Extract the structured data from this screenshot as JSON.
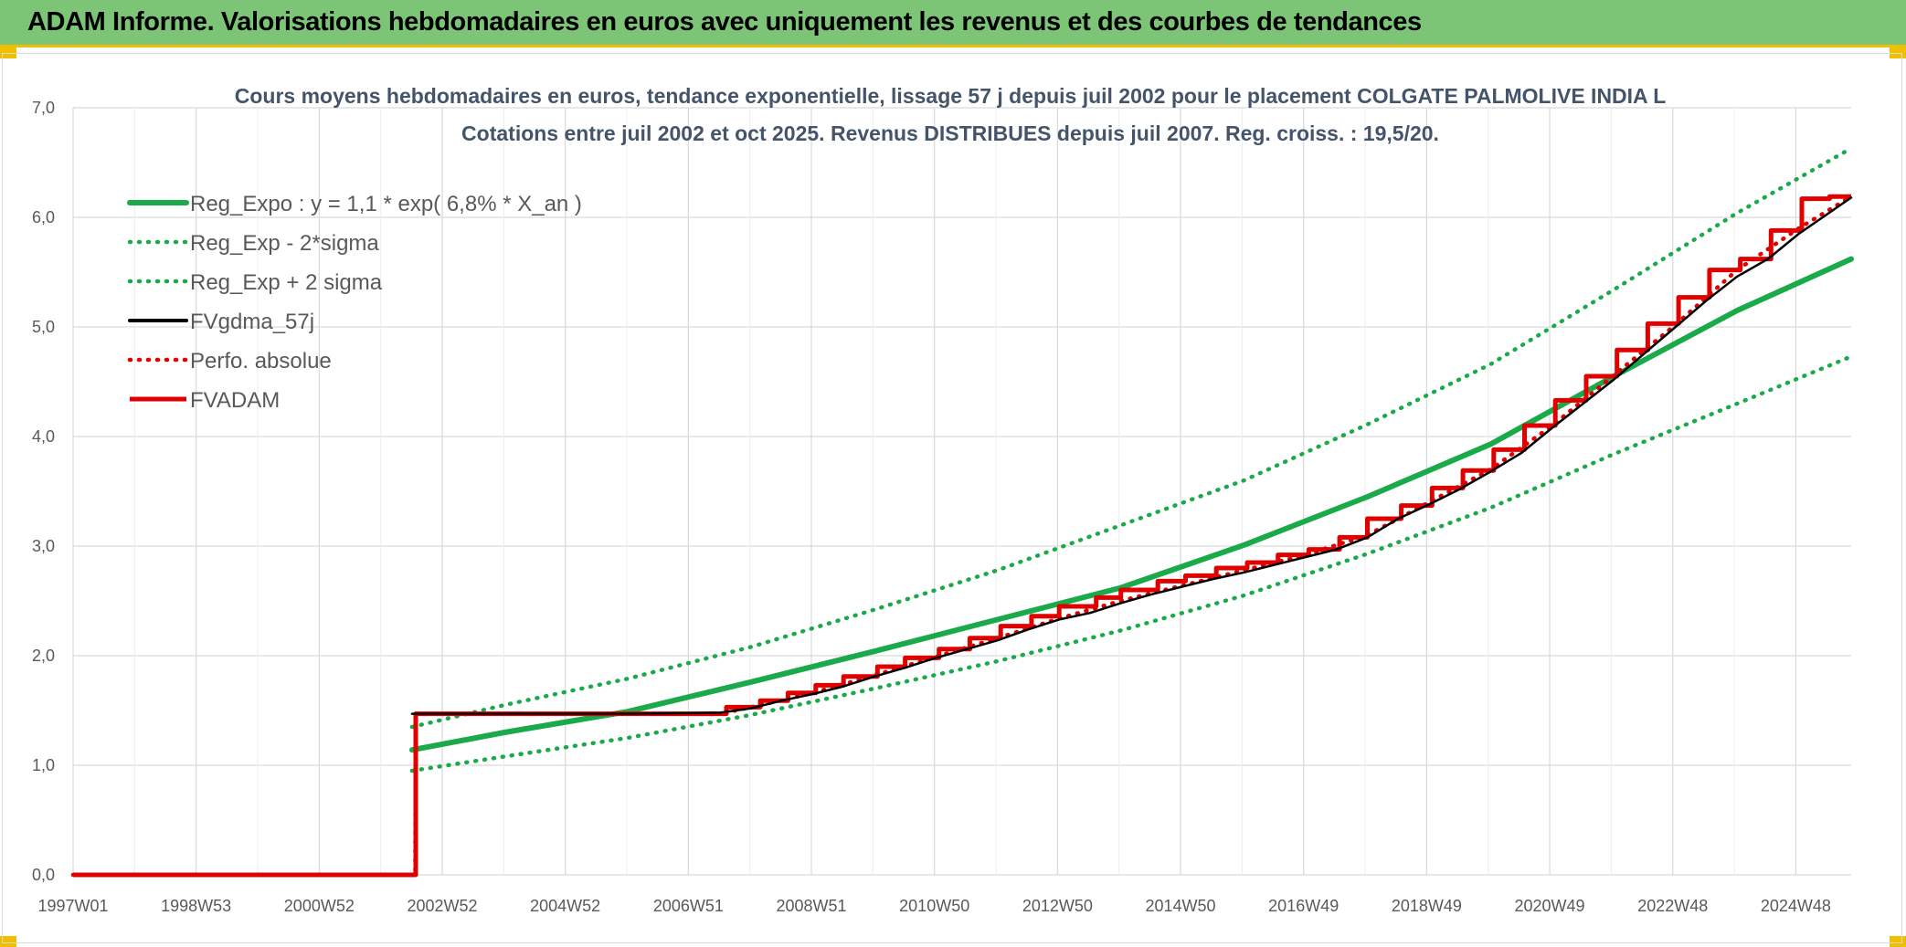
{
  "header": {
    "title": "ADAM Informe. Valorisations hebdomadaires en euros avec uniquement les revenus et des courbes de tendances"
  },
  "colors": {
    "header_bg": "#7cc576",
    "accent_yellow": "#f0c000",
    "trend_green": "#1aaa4a",
    "fvadam_red": "#e00000",
    "fvgdma_black": "#000000",
    "perfo_red": "#e00000"
  },
  "chart_data": {
    "type": "line",
    "title": "Cours moyens hebdomadaires en euros, tendance exponentielle, lissage 57 j depuis juil 2002 pour le placement COLGATE PALMOLIVE INDIA L",
    "subtitle": "Cotations entre juil 2002 et oct 2025. Revenus DISTRIBUES depuis juil 2007. Reg. croiss. : 19,5/20.",
    "xlabel": "",
    "ylabel": "",
    "x_unit": "years (1997W01 = 1997.0)",
    "xlim": [
      1997.0,
      2025.85
    ],
    "ylim": [
      0,
      7
    ],
    "grid": true,
    "legend_position": "top-left",
    "x_tick_labels": [
      "1997W01",
      "1998W53",
      "2000W52",
      "2002W52",
      "2004W52",
      "2006W51",
      "2008W51",
      "2010W50",
      "2012W50",
      "2014W50",
      "2016W49",
      "2018W49",
      "2020W49",
      "2022W48",
      "2024W48"
    ],
    "y_tick_labels": [
      "0,0",
      "1,0",
      "2,0",
      "3,0",
      "4,0",
      "5,0",
      "6,0",
      "7,0"
    ],
    "series": [
      {
        "name": "Reg_Expo : y = 1,1 * exp( 6,8% *  X_an )",
        "style": "solid-thick",
        "color": "#1aaa4a",
        "x": [
          2002.5,
          2004,
          2006,
          2008,
          2010,
          2012,
          2014,
          2016,
          2018,
          2020,
          2022,
          2024,
          2025.85
        ],
        "y": [
          1.14,
          1.3,
          1.49,
          1.76,
          2.04,
          2.33,
          2.62,
          3.01,
          3.45,
          3.93,
          4.55,
          5.15,
          5.62
        ]
      },
      {
        "name": "Reg_Exp - 2*sigma",
        "style": "dotted",
        "color": "#1aaa4a",
        "x": [
          2002.5,
          2004,
          2006,
          2008,
          2010,
          2012,
          2014,
          2016,
          2018,
          2020,
          2022,
          2024,
          2025.85
        ],
        "y": [
          0.95,
          1.08,
          1.25,
          1.46,
          1.7,
          1.95,
          2.23,
          2.55,
          2.93,
          3.35,
          3.84,
          4.3,
          4.73
        ]
      },
      {
        "name": "Reg_Exp + 2 sigma",
        "style": "dotted",
        "color": "#1aaa4a",
        "x": [
          2002.5,
          2004,
          2006,
          2008,
          2010,
          2012,
          2014,
          2016,
          2018,
          2020,
          2022,
          2024,
          2025.85
        ],
        "y": [
          1.35,
          1.55,
          1.79,
          2.08,
          2.42,
          2.78,
          3.19,
          3.6,
          4.11,
          4.66,
          5.34,
          6.04,
          6.63
        ]
      },
      {
        "name": "FVgdma_57j",
        "style": "solid-thin",
        "color": "#000000",
        "x": [
          2002.5,
          2004,
          2006,
          2007.5,
          2008,
          2008.5,
          2009,
          2009.5,
          2010,
          2010.5,
          2011,
          2011.5,
          2012,
          2012.5,
          2013,
          2013.5,
          2014,
          2014.5,
          2015,
          2015.5,
          2016,
          2016.5,
          2017,
          2017.5,
          2018,
          2018.5,
          2019,
          2019.5,
          2020,
          2020.5,
          2021,
          2021.5,
          2022,
          2022.5,
          2023,
          2023.5,
          2024,
          2024.5,
          2025,
          2025.85
        ],
        "y": [
          1.47,
          1.47,
          1.47,
          1.48,
          1.52,
          1.59,
          1.65,
          1.72,
          1.81,
          1.89,
          1.98,
          2.06,
          2.14,
          2.24,
          2.33,
          2.39,
          2.48,
          2.56,
          2.63,
          2.7,
          2.76,
          2.83,
          2.9,
          2.97,
          3.08,
          3.25,
          3.38,
          3.52,
          3.68,
          3.85,
          4.08,
          4.3,
          4.52,
          4.76,
          5.0,
          5.24,
          5.46,
          5.62,
          5.85,
          6.18
        ]
      },
      {
        "name": "Perfo. absolue",
        "style": "dotted",
        "color": "#e00000",
        "x": [
          1997.0,
          2002.55,
          2002.56,
          2006,
          2007.5,
          2008,
          2009,
          2010,
          2011,
          2012,
          2013,
          2014,
          2015,
          2016,
          2017,
          2018,
          2019,
          2020,
          2021,
          2022,
          2023,
          2024,
          2025,
          2025.85
        ],
        "y": [
          0,
          0,
          1.47,
          1.47,
          1.47,
          1.53,
          1.66,
          1.82,
          1.99,
          2.16,
          2.34,
          2.5,
          2.64,
          2.78,
          2.92,
          3.1,
          3.4,
          3.7,
          4.1,
          4.56,
          5.02,
          5.52,
          5.9,
          6.19
        ]
      },
      {
        "name": "FVADAM",
        "style": "solid-step",
        "color": "#e00000",
        "x": [
          1997.0,
          2002.55,
          2002.56,
          2007.45,
          2007.6,
          2008.15,
          2008.6,
          2009.05,
          2009.5,
          2010.05,
          2010.5,
          2011.05,
          2011.55,
          2012.05,
          2012.55,
          2013.0,
          2013.6,
          2014.0,
          2014.6,
          2015.05,
          2015.55,
          2016.05,
          2016.55,
          2017.05,
          2017.55,
          2018.0,
          2018.55,
          2019.05,
          2019.55,
          2020.05,
          2020.55,
          2021.05,
          2021.55,
          2022.05,
          2022.55,
          2023.05,
          2023.55,
          2024.05,
          2024.55,
          2025.05,
          2025.5,
          2025.85
        ],
        "y": [
          0,
          0,
          1.47,
          1.47,
          1.53,
          1.59,
          1.66,
          1.73,
          1.81,
          1.9,
          1.98,
          2.06,
          2.16,
          2.27,
          2.36,
          2.45,
          2.53,
          2.6,
          2.68,
          2.73,
          2.8,
          2.85,
          2.92,
          2.97,
          3.08,
          3.25,
          3.37,
          3.53,
          3.69,
          3.88,
          4.1,
          4.33,
          4.55,
          4.79,
          5.03,
          5.27,
          5.52,
          5.62,
          5.88,
          6.17,
          6.19,
          6.19
        ]
      }
    ]
  }
}
